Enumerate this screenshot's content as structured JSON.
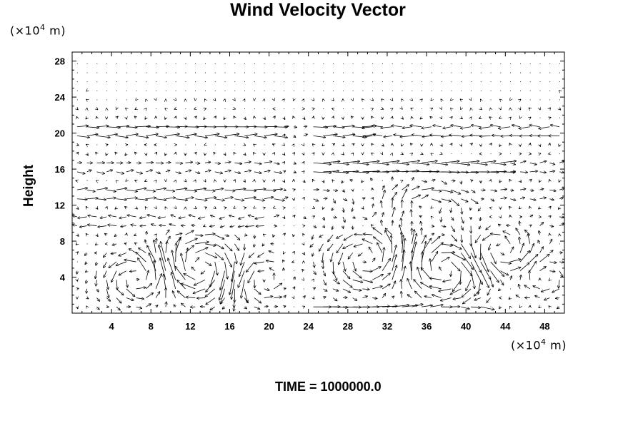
{
  "chart_data": {
    "type": "vector_field",
    "title": "Wind Velocity Vector",
    "ylabel": "Height",
    "y_unit": {
      "prefix": "(×10",
      "exp": "4",
      "suffix": " m)"
    },
    "x_unit": {
      "prefix": "(×10",
      "exp": "4",
      "suffix": " m)"
    },
    "xlim": [
      0,
      50
    ],
    "ylim": [
      0,
      29
    ],
    "xticks": [
      4,
      8,
      12,
      16,
      20,
      24,
      28,
      32,
      36,
      40,
      44,
      48
    ],
    "yticks": [
      4,
      8,
      12,
      16,
      20,
      24,
      28
    ],
    "grid": false,
    "vector_grid": {
      "nx": 50,
      "ny": 29,
      "dx": 1.0,
      "dy": 1.0
    }
  },
  "footer": {
    "label": "TIME = 1000000.0"
  }
}
